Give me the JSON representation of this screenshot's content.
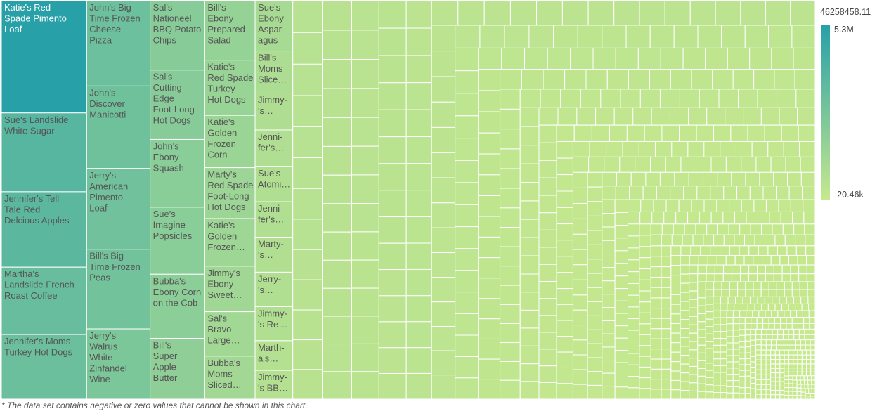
{
  "chart_data": {
    "type": "treemap",
    "total_label": "46258458.11",
    "color_scale": {
      "max_label": "5.3M",
      "min_label": "-20.46k",
      "max": 5300000,
      "min": -20460,
      "color_high": "#27a0a8",
      "color_low": "#c7e98e"
    },
    "items": [
      {
        "label": "Katie's Red Spade Pimento Loaf",
        "value": 5300000
      },
      {
        "label": "Sue's Landslide White Sugar",
        "value": 3720000
      },
      {
        "label": "Jennifer's Tell Tale Red Delcious Apples",
        "value": 3560000
      },
      {
        "label": "Martha's Landslide French Roast Coffee",
        "value": 3180000
      },
      {
        "label": "Jennifer's Moms Turkey Hot Dogs",
        "value": 3050000
      },
      {
        "label": "John's Big Time Frozen Cheese Pizza",
        "value": 3000000
      },
      {
        "label": "John's Discover Manicotti",
        "value": 2900000
      },
      {
        "label": "Jerry's American Pimento Loaf",
        "value": 2840000
      },
      {
        "label": "Bill's Big Time Frozen Peas",
        "value": 2800000
      },
      {
        "label": "Jerry's Walrus White Zinfandel Wine",
        "value": 2470000
      },
      {
        "label": "Sal's Nationeel BBQ Potato Chips",
        "value": 2100000
      },
      {
        "label": "Sal's Cutting Edge Foot-Long Hot Dogs",
        "value": 2100000
      },
      {
        "label": "John's Ebony Squash",
        "value": 2050000
      },
      {
        "label": "Sue's Imagine Popsicles",
        "value": 2030000
      },
      {
        "label": "Bubba's Ebony Corn on the Cob",
        "value": 1940000
      },
      {
        "label": "Bill's Super Apple Butter",
        "value": 1840000
      },
      {
        "label": "Bill's Ebony Prepared Salad",
        "value": 1660000
      },
      {
        "label": "Katie's Red Spade Turkey Hot Dogs",
        "value": 1540000
      },
      {
        "label": "Katie's Golden Frozen Corn",
        "value": 1460000
      },
      {
        "label": "Marty's Red Spade Foot-Long Hot Dogs",
        "value": 1420000
      },
      {
        "label": "Katie's Golden Frozen Broccoli",
        "value": 1330000
      },
      {
        "label": "Jimmy's Ebony Sweet Peas",
        "value": 1270000
      },
      {
        "label": "Sal's Bravo Large Canned Shrimp",
        "value": 1240000
      },
      {
        "label": "Bubba's Moms Sliced Turkey",
        "value": 1200000
      },
      {
        "label": "Sue's Ebony Asparagus",
        "value": 1050000
      },
      {
        "label": "Bill's Moms Sliced Ham",
        "value": 880000
      },
      {
        "label": "Jennifer's High Top Dried Mushrooms",
        "value": 760000
      },
      {
        "label": "Jimmy's Ebony Prepared Salad",
        "value": 770000
      },
      {
        "label": "Sue's Atomic Mint Chocolate Chip Ice Cream",
        "value": 740000
      },
      {
        "label": "Jennifer's Nationeel Salted Peanuts",
        "value": 740000
      },
      {
        "label": "Marty's High Top Red Delcious Apples",
        "value": 730000
      },
      {
        "label": "Jerry's Even Better String Cheese",
        "value": 720000
      },
      {
        "label": "Jimmy's Red Spade Low Fat Cookies",
        "value": 710000
      },
      {
        "label": "Martha's Jeffers Wheat Puffs",
        "value": 620000
      },
      {
        "label": "Jimmy's BBB Best Apple Preserves",
        "value": 600000
      }
    ],
    "small_items": {
      "count": 1050,
      "max": 520000,
      "min": 8000
    },
    "footnote": "* The data set contains negative or zero values that cannot be shown in this chart."
  }
}
